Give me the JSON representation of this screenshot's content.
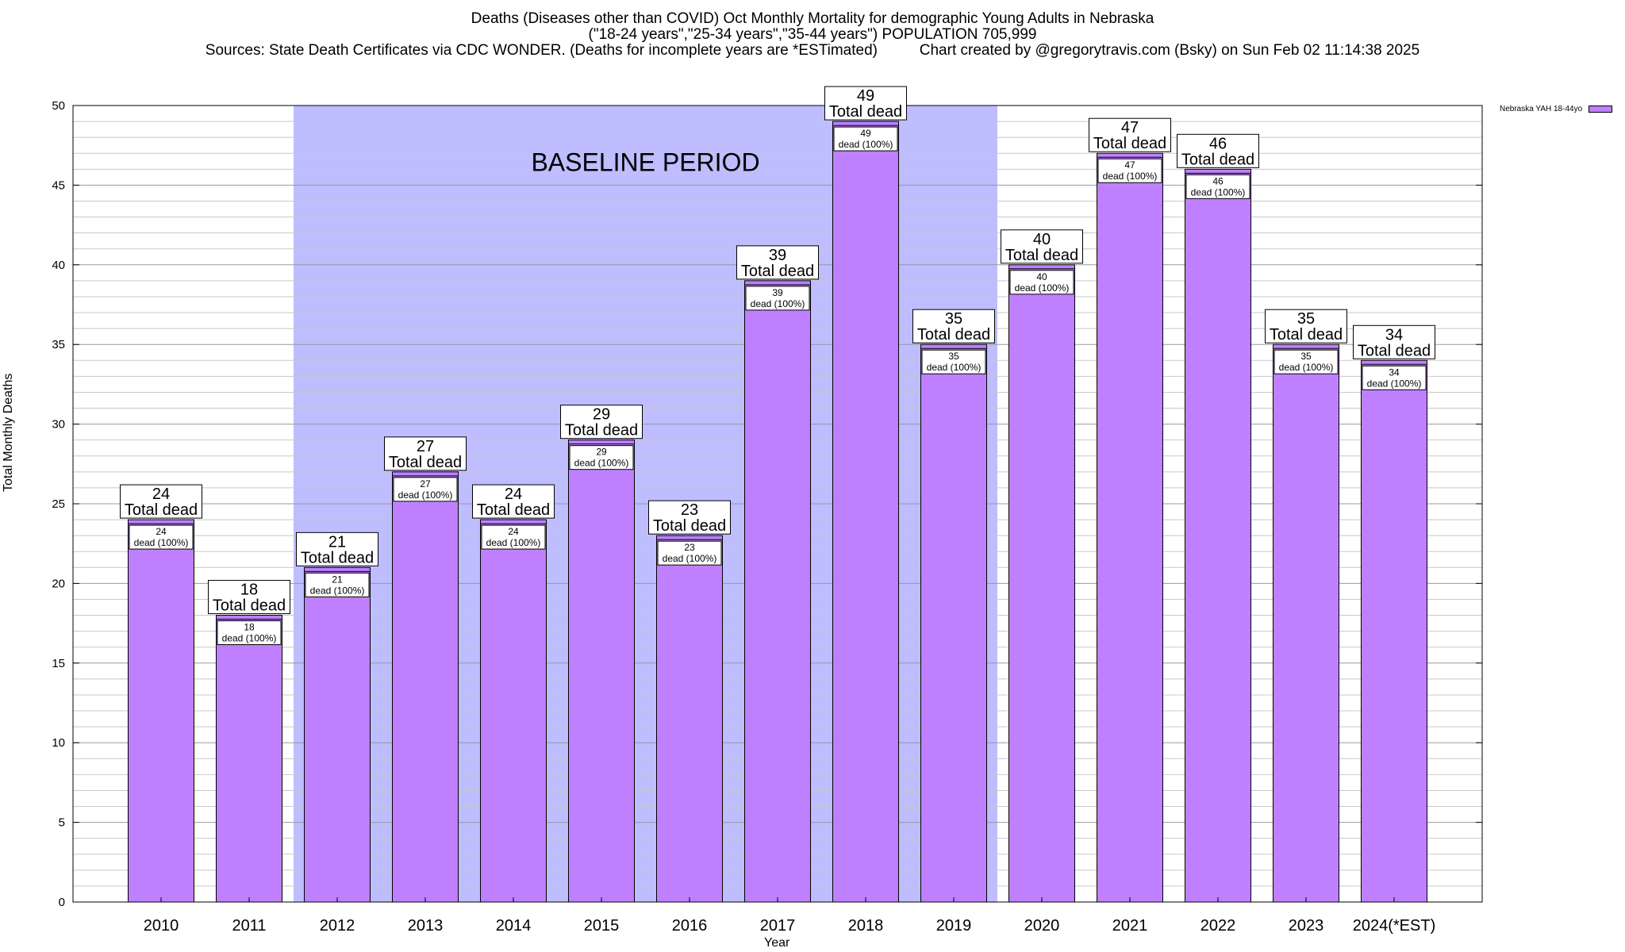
{
  "title": {
    "line1": "Deaths (Diseases other than COVID) Oct Monthly Mortality for demographic Young Adults in Nebraska",
    "line2": "(\"18-24 years\",\"25-34 years\",\"35-44 years\") POPULATION 705,999",
    "line3": "Sources: State Death Certificates via CDC WONDER. (Deaths for incomplete years are *ESTimated)          Chart created by @gregorytravis.com (Bsky) on Sun Feb 02 11:14:38 2025"
  },
  "chart_data": {
    "type": "bar",
    "categories": [
      "2010",
      "2011",
      "2012",
      "2013",
      "2014",
      "2015",
      "2016",
      "2017",
      "2018",
      "2019",
      "2020",
      "2021",
      "2022",
      "2023",
      "2024(*EST)"
    ],
    "series": [
      {
        "name": "Nebraska YAH 18-44yo",
        "values": [
          24,
          18,
          21,
          27,
          24,
          29,
          23,
          39,
          49,
          35,
          40,
          47,
          46,
          35,
          34
        ]
      }
    ],
    "xlabel": "Year",
    "ylabel": "Total Monthly Deaths",
    "ylim": [
      0,
      50
    ],
    "yticks": [
      0,
      5,
      10,
      15,
      20,
      25,
      30,
      35,
      40,
      45,
      50
    ],
    "grid": true,
    "legend_position": "top-right",
    "bar_label_top": "Total dead",
    "bar_label_inner": "dead (100%)",
    "baseline": {
      "label": "BASELINE PERIOD",
      "from": "2012",
      "to": "2019"
    },
    "colors": {
      "bar": "#bf80ff",
      "baseline": "#bdbdff",
      "grid": "#b0b0b0"
    }
  }
}
